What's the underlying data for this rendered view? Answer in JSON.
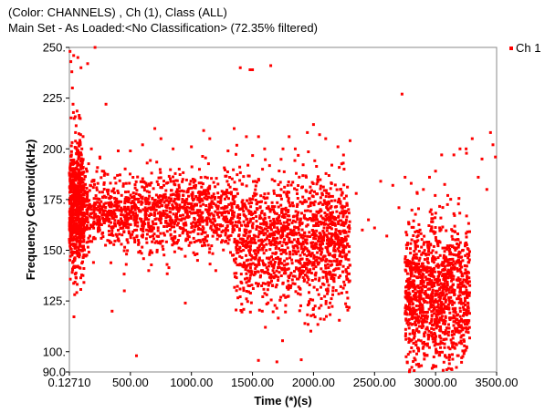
{
  "header": {
    "line1": "(Color: CHANNELS) , Ch (1), Class (ALL)",
    "line2": "Main Set - As Loaded:<No Classification> (72.35% filtered)"
  },
  "chart_data": {
    "type": "scatter",
    "xlabel": "Time (*)(s)",
    "ylabel": "Frequency Centroid(kHz)",
    "xlim": [
      0.1271,
      3500
    ],
    "ylim": [
      90,
      250
    ],
    "x_ticks": [
      {
        "value": 0.1271,
        "label": "0.12710"
      },
      {
        "value": 500,
        "label": "500.00"
      },
      {
        "value": 1000,
        "label": "1000.00"
      },
      {
        "value": 1500,
        "label": "1500.00"
      },
      {
        "value": 2000,
        "label": "2000.00"
      },
      {
        "value": 2500,
        "label": "2500.00"
      },
      {
        "value": 3000,
        "label": "3000.00"
      },
      {
        "value": 3500,
        "label": "3500.00"
      }
    ],
    "y_ticks": [
      {
        "value": 90,
        "label": "90.0"
      },
      {
        "value": 100,
        "label": "100."
      },
      {
        "value": 125,
        "label": "125."
      },
      {
        "value": 150,
        "label": "150."
      },
      {
        "value": 175,
        "label": "175."
      },
      {
        "value": 200,
        "label": "200."
      },
      {
        "value": 225,
        "label": "225."
      },
      {
        "value": 250,
        "label": "250."
      }
    ],
    "grid": false,
    "legend": {
      "position": "right-top"
    },
    "series": [
      {
        "name": "Ch 1",
        "color": "#ff0000",
        "clusters": [
          {
            "x_range": [
              0.1271,
              120
            ],
            "y_center": 172,
            "y_spread": 20,
            "count": 650
          },
          {
            "x_range": [
              120,
              1350
            ],
            "y_center": 169,
            "y_spread": 11,
            "count": 1250
          },
          {
            "x_range": [
              1350,
              2300
            ],
            "y_center": 155,
            "y_spread": 18,
            "count": 1450
          },
          {
            "x_range": [
              2750,
              3280
            ],
            "y_center": 128,
            "y_spread": 22,
            "count": 1250
          }
        ],
        "points": [
          [
            5,
            248
          ],
          [
            12,
            243
          ],
          [
            20,
            238
          ],
          [
            25,
            230
          ],
          [
            30,
            222
          ],
          [
            35,
            246
          ],
          [
            40,
            215
          ],
          [
            50,
            208
          ],
          [
            60,
            200
          ],
          [
            70,
            245
          ],
          [
            80,
            196
          ],
          [
            95,
            240
          ],
          [
            150,
            242
          ],
          [
            180,
            200
          ],
          [
            210,
            250
          ],
          [
            250,
            196
          ],
          [
            270,
            189
          ],
          [
            300,
            222
          ],
          [
            350,
            120
          ],
          [
            400,
            199
          ],
          [
            450,
            130
          ],
          [
            500,
            199
          ],
          [
            550,
            98
          ],
          [
            600,
            202
          ],
          [
            650,
            140
          ],
          [
            700,
            210
          ],
          [
            750,
            205
          ],
          [
            800,
            143
          ],
          [
            850,
            200
          ],
          [
            900,
            190
          ],
          [
            950,
            124
          ],
          [
            1000,
            201
          ],
          [
            1050,
            145
          ],
          [
            1100,
            209
          ],
          [
            1150,
            205
          ],
          [
            1200,
            140
          ],
          [
            1300,
            199
          ],
          [
            1350,
            210
          ],
          [
            1400,
            240
          ],
          [
            1450,
            206
          ],
          [
            1480,
            239
          ],
          [
            1500,
            239
          ],
          [
            1550,
            206
          ],
          [
            1600,
            200
          ],
          [
            1650,
            241
          ],
          [
            1700,
            95
          ],
          [
            1750,
            200
          ],
          [
            1800,
            206
          ],
          [
            1850,
            200
          ],
          [
            1900,
            96
          ],
          [
            1950,
            208
          ],
          [
            2000,
            212
          ],
          [
            2050,
            207
          ],
          [
            2100,
            205
          ],
          [
            2150,
            192
          ],
          [
            2200,
            201
          ],
          [
            2250,
            190
          ],
          [
            2300,
            204
          ],
          [
            2350,
            178
          ],
          [
            2400,
            160
          ],
          [
            2450,
            165
          ],
          [
            2500,
            161
          ],
          [
            2550,
            184
          ],
          [
            2600,
            157
          ],
          [
            2650,
            182
          ],
          [
            2700,
            171
          ],
          [
            2725,
            227
          ],
          [
            2750,
            186
          ],
          [
            2800,
            183
          ],
          [
            2850,
            178
          ],
          [
            2900,
            180
          ],
          [
            2950,
            186
          ],
          [
            3000,
            189
          ],
          [
            3050,
            197
          ],
          [
            3100,
            177
          ],
          [
            3150,
            197
          ],
          [
            3200,
            200
          ],
          [
            3250,
            200
          ],
          [
            3300,
            205
          ],
          [
            3350,
            186
          ],
          [
            3380,
            195
          ],
          [
            3420,
            180
          ],
          [
            3450,
            208
          ],
          [
            3470,
            202
          ],
          [
            3490,
            196
          ]
        ]
      }
    ]
  }
}
